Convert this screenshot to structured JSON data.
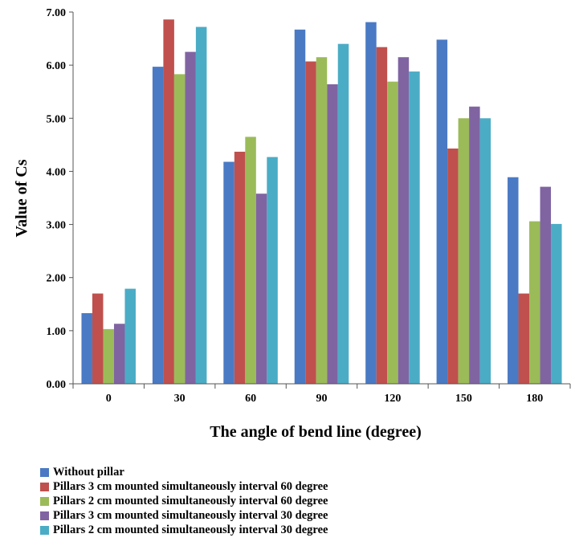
{
  "chart_data": {
    "type": "bar",
    "xlabel": "The angle of bend line (degree)",
    "ylabel": "Value of Cs",
    "ylim": [
      0,
      7
    ],
    "yticks": [
      "0.00",
      "1.00",
      "2.00",
      "3.00",
      "4.00",
      "5.00",
      "6.00",
      "7.00"
    ],
    "categories": [
      "0",
      "30",
      "60",
      "90",
      "120",
      "150",
      "180"
    ],
    "legend_position": "bottom",
    "grid": false,
    "series": [
      {
        "name": "Without pillar",
        "color": "#4a7ac4",
        "values": [
          1.33,
          5.97,
          4.18,
          6.67,
          6.81,
          6.48,
          3.89
        ]
      },
      {
        "name": "Pillars 3 cm mounted simultaneously interval 60 degree",
        "color": "#c0504d",
        "values": [
          1.7,
          6.86,
          4.37,
          6.07,
          6.34,
          4.43,
          1.7
        ]
      },
      {
        "name": "Pillars 2 cm mounted simultaneously interval 60 degree",
        "color": "#9bbb59",
        "values": [
          1.03,
          5.83,
          4.65,
          6.15,
          5.69,
          5.0,
          3.06
        ]
      },
      {
        "name": "Pillars 3 cm mounted simultaneously interval 30 degree",
        "color": "#8064a2",
        "values": [
          1.13,
          6.25,
          3.58,
          5.64,
          6.15,
          5.22,
          3.71
        ]
      },
      {
        "name": "Pillars 2 cm mounted simultaneously interval 30 degree",
        "color": "#4bacc6",
        "values": [
          1.79,
          6.72,
          4.27,
          6.4,
          5.88,
          5.0,
          3.01
        ]
      }
    ]
  }
}
